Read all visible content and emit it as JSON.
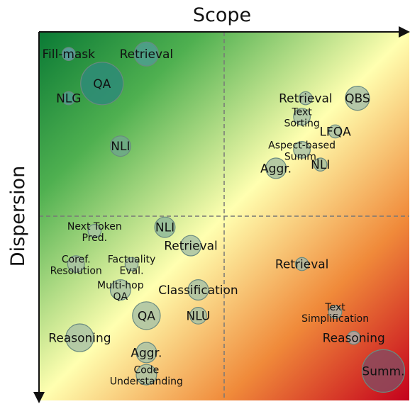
{
  "chart_data": {
    "type": "scatter",
    "xlabel": "Scope",
    "ylabel": "Dispersion",
    "xlim": [
      0,
      1
    ],
    "ylim": [
      0,
      1
    ],
    "quadrant_dividers": {
      "x": 0.5,
      "y": 0.5
    },
    "background_gradient": [
      "#0a7a35",
      "#ffffb0",
      "#c4001c"
    ],
    "bubble_fill": "#7fb1a6",
    "points": [
      {
        "label": "Fill-mask",
        "x": 0.08,
        "y": 0.94,
        "size": 2,
        "color": "#5f9fa6"
      },
      {
        "label": "Retrieval",
        "x": 0.29,
        "y": 0.94,
        "size": 5,
        "color": "#4f9f8f"
      },
      {
        "label": "QA",
        "x": 0.17,
        "y": 0.86,
        "size": 10,
        "color": "#2e8b78"
      },
      {
        "label": "NLG",
        "x": 0.08,
        "y": 0.82,
        "size": 2,
        "color": "#4f9f8f"
      },
      {
        "label": "NLI",
        "x": 0.22,
        "y": 0.69,
        "size": 4,
        "color": "#6ea889"
      },
      {
        "label": "Retrieval",
        "x": 0.72,
        "y": 0.82,
        "size": 2,
        "color": "#a7bfa6"
      },
      {
        "label": "QBS",
        "x": 0.86,
        "y": 0.82,
        "size": 5,
        "color": "#a7bfa8"
      },
      {
        "label": "Text\nSorting",
        "x": 0.71,
        "y": 0.77,
        "size": 3,
        "color": "#a9c2a8"
      },
      {
        "label": "LFQA",
        "x": 0.8,
        "y": 0.73,
        "size": 2,
        "color": "#a7bfa6"
      },
      {
        "label": "Aspect-based\nSumm.",
        "x": 0.71,
        "y": 0.68,
        "size": 3,
        "color": "#acc4a8"
      },
      {
        "label": "Aggr.",
        "x": 0.64,
        "y": 0.63,
        "size": 4,
        "color": "#a7bfa0"
      },
      {
        "label": "NLI",
        "x": 0.76,
        "y": 0.64,
        "size": 2,
        "color": "#a7bfa0"
      },
      {
        "label": "Next Token\nPred.",
        "x": 0.15,
        "y": 0.46,
        "size": 2,
        "color": "#a7c4a0"
      },
      {
        "label": "NLI",
        "x": 0.34,
        "y": 0.47,
        "size": 4,
        "color": "#8fb89a"
      },
      {
        "label": "Retrieval",
        "x": 0.41,
        "y": 0.42,
        "size": 4,
        "color": "#a8c2a4"
      },
      {
        "label": "Coref.\nResolution",
        "x": 0.1,
        "y": 0.37,
        "size": 3,
        "color": "#a9c2a4"
      },
      {
        "label": "Factuality\nEval.",
        "x": 0.25,
        "y": 0.37,
        "size": 2,
        "color": "#a9c2a4"
      },
      {
        "label": "Multi-hop\nQA",
        "x": 0.22,
        "y": 0.3,
        "size": 4,
        "color": "#a9c2a4"
      },
      {
        "label": "Classification",
        "x": 0.43,
        "y": 0.3,
        "size": 4,
        "color": "#a9c2a4"
      },
      {
        "label": "QA",
        "x": 0.29,
        "y": 0.23,
        "size": 6,
        "color": "#a9c2a4"
      },
      {
        "label": "NLU",
        "x": 0.43,
        "y": 0.23,
        "size": 3,
        "color": "#a9c2a4"
      },
      {
        "label": "Reasoning",
        "x": 0.11,
        "y": 0.17,
        "size": 6,
        "color": "#a9c2a4"
      },
      {
        "label": "Aggr.",
        "x": 0.29,
        "y": 0.13,
        "size": 4,
        "color": "#a9c2a4"
      },
      {
        "label": "Code\nUnderstanding",
        "x": 0.29,
        "y": 0.07,
        "size": 4,
        "color": "#a9c2a4"
      },
      {
        "label": "Retrieval",
        "x": 0.71,
        "y": 0.37,
        "size": 2,
        "color": "#a9b8a4"
      },
      {
        "label": "Text\nSimplification",
        "x": 0.8,
        "y": 0.24,
        "size": 2,
        "color": "#a9b0a8"
      },
      {
        "label": "Reasoning",
        "x": 0.85,
        "y": 0.17,
        "size": 2,
        "color": "#a9aaa8"
      },
      {
        "label": "Summ.",
        "x": 0.93,
        "y": 0.08,
        "size": 10,
        "color": "#8a4a5e"
      }
    ]
  }
}
